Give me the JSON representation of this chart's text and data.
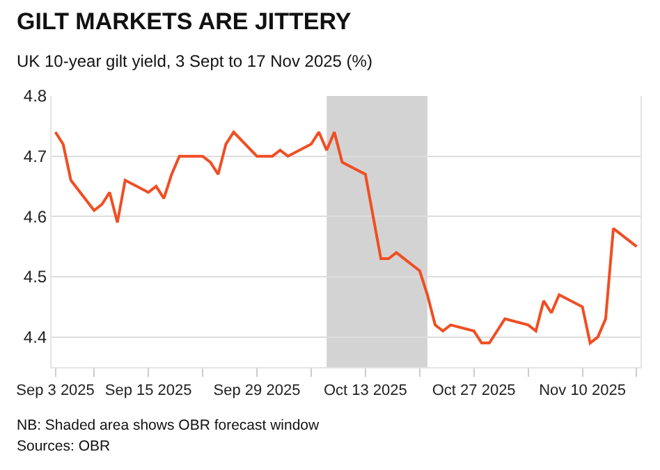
{
  "chart_data": {
    "type": "line",
    "title": "GILT MARKETS ARE JITTERY",
    "subtitle": "UK 10-year gilt yield, 3 Sept to 17 Nov 2025 (%)",
    "x": [
      "2025-09-03",
      "2025-09-04",
      "2025-09-05",
      "2025-09-08",
      "2025-09-09",
      "2025-09-10",
      "2025-09-11",
      "2025-09-12",
      "2025-09-15",
      "2025-09-16",
      "2025-09-17",
      "2025-09-18",
      "2025-09-19",
      "2025-09-22",
      "2025-09-23",
      "2025-09-24",
      "2025-09-25",
      "2025-09-26",
      "2025-09-29",
      "2025-09-30",
      "2025-10-01",
      "2025-10-02",
      "2025-10-03",
      "2025-10-06",
      "2025-10-07",
      "2025-10-08",
      "2025-10-09",
      "2025-10-10",
      "2025-10-13",
      "2025-10-14",
      "2025-10-15",
      "2025-10-16",
      "2025-10-17",
      "2025-10-20",
      "2025-10-21",
      "2025-10-22",
      "2025-10-23",
      "2025-10-24",
      "2025-10-27",
      "2025-10-28",
      "2025-10-29",
      "2025-10-30",
      "2025-10-31",
      "2025-11-03",
      "2025-11-04",
      "2025-11-05",
      "2025-11-06",
      "2025-11-07",
      "2025-11-10",
      "2025-11-11",
      "2025-11-12",
      "2025-11-13",
      "2025-11-14",
      "2025-11-17"
    ],
    "series": [
      {
        "color": "#f04e23",
        "values": [
          4.74,
          4.72,
          4.66,
          4.61,
          4.62,
          4.64,
          4.59,
          4.66,
          4.64,
          4.65,
          4.63,
          4.67,
          4.7,
          4.7,
          4.69,
          4.67,
          4.72,
          4.74,
          4.7,
          4.7,
          4.7,
          4.71,
          4.7,
          4.72,
          4.74,
          4.71,
          4.74,
          4.69,
          4.67,
          4.6,
          4.53,
          4.53,
          4.54,
          4.51,
          4.47,
          4.42,
          4.41,
          4.42,
          4.41,
          4.39,
          4.39,
          4.41,
          4.43,
          4.42,
          4.41,
          4.46,
          4.44,
          4.47,
          4.45,
          4.39,
          4.4,
          4.43,
          4.58,
          4.55
        ]
      }
    ],
    "xlim": [
      "2025-09-02T12:00",
      "2025-11-17T12:00"
    ],
    "xticks": [
      {
        "value": "2025-09-03",
        "label": "Sep 3 2025"
      },
      {
        "value": "2025-09-08",
        "label": null
      },
      {
        "value": "2025-09-15",
        "label": "Sep 15 2025"
      },
      {
        "value": "2025-09-22",
        "label": null
      },
      {
        "value": "2025-09-29",
        "label": "Sep 29 2025"
      },
      {
        "value": "2025-10-06",
        "label": null
      },
      {
        "value": "2025-10-13",
        "label": "Oct 13 2025"
      },
      {
        "value": "2025-10-20",
        "label": null
      },
      {
        "value": "2025-10-27",
        "label": "Oct 27 2025"
      },
      {
        "value": "2025-11-03",
        "label": null
      },
      {
        "value": "2025-11-10",
        "label": "Nov 10 2025"
      },
      {
        "value": "2025-11-17",
        "label": null
      }
    ],
    "ylim": [
      4.35,
      4.8
    ],
    "yticks": [
      4.4,
      4.5,
      4.6,
      4.7,
      4.8
    ],
    "bands": [
      {
        "axis": "x",
        "from": "2025-10-08",
        "to": "2025-10-21",
        "color": "#d3d3d3"
      }
    ],
    "grid": "y",
    "marker": "none",
    "line_style": "solid",
    "annotations": [
      "NB: Shaded area shows OBR forecast window",
      "Sources: OBR"
    ]
  }
}
